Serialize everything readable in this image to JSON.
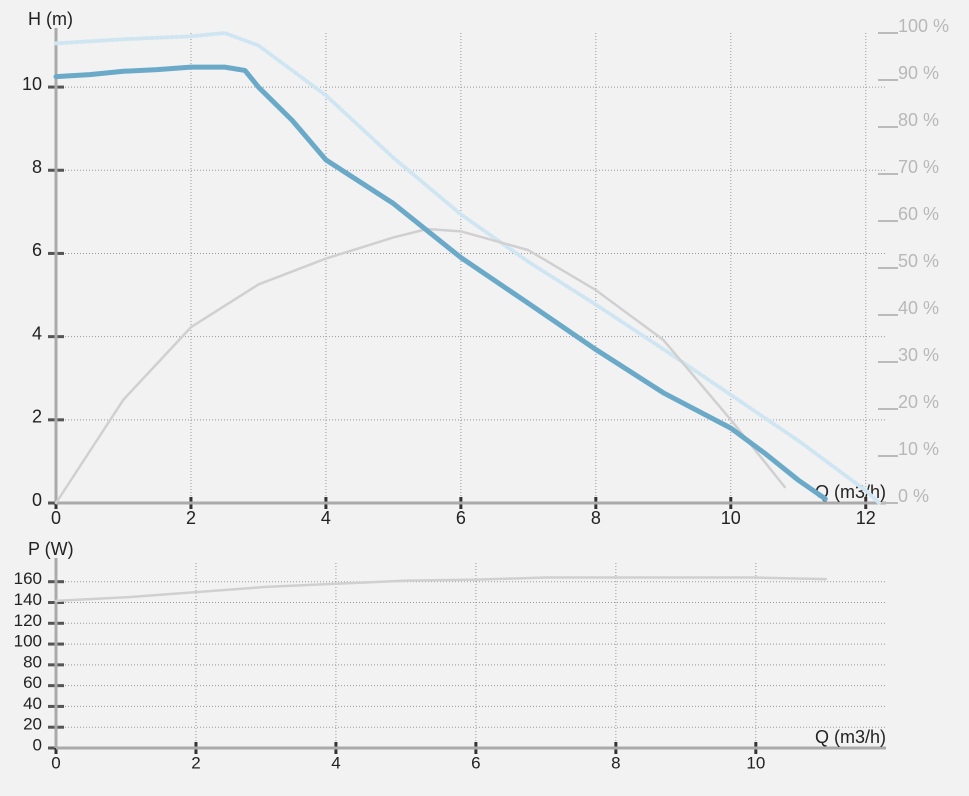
{
  "chart_data": [
    {
      "type": "line",
      "ylabel": "H (m)",
      "xlabel": "Q (m3/h)",
      "xlim": [
        0,
        12.3
      ],
      "ylim": [
        0,
        11.3
      ],
      "y2lim": [
        0,
        100
      ],
      "xticks": [
        0,
        2,
        4,
        6,
        8,
        10,
        12
      ],
      "yticks": [
        0,
        2,
        4,
        6,
        8,
        10
      ],
      "y2ticks": [
        {
          "value": 0,
          "label": "0 %"
        },
        {
          "value": 10,
          "label": "10 %"
        },
        {
          "value": 20,
          "label": "20 %"
        },
        {
          "value": 30,
          "label": "30 %"
        },
        {
          "value": 40,
          "label": "40 %"
        },
        {
          "value": 50,
          "label": "50 %"
        },
        {
          "value": 60,
          "label": "60 %"
        },
        {
          "value": 70,
          "label": "70 %"
        },
        {
          "value": 80,
          "label": "80 %"
        },
        {
          "value": 90,
          "label": "90 %"
        },
        {
          "value": 100,
          "label": "100 %"
        }
      ],
      "grid": true,
      "series": [
        {
          "color": "#cfe6f2",
          "dashed": true,
          "x": [
            0,
            1,
            2,
            2.5,
            3,
            4,
            5,
            6,
            7,
            8,
            9,
            10,
            11,
            12,
            12.2
          ],
          "values": [
            11.05,
            11.15,
            11.22,
            11.3,
            11.0,
            9.8,
            8.3,
            6.94,
            5.8,
            4.77,
            3.7,
            2.6,
            1.5,
            0.3,
            0
          ]
        },
        {
          "color": "#d0d0d0",
          "axis": "y2",
          "x": [
            0,
            1,
            2,
            3,
            4,
            5,
            5.5,
            6,
            7,
            8,
            9,
            10,
            10.8
          ],
          "values": [
            0,
            22,
            37.4,
            46.5,
            52,
            56.5,
            58.3,
            57.8,
            53.8,
            45.3,
            34.7,
            17.7,
            3.4
          ]
        },
        {
          "color": "#6aaac8",
          "width": 5,
          "x": [
            0,
            0.5,
            1,
            1.5,
            2,
            2.5,
            2.8,
            3,
            3.5,
            4,
            5,
            6,
            7,
            8,
            9,
            10,
            10.5,
            11,
            11.4
          ],
          "values": [
            10.25,
            10.3,
            10.38,
            10.42,
            10.48,
            10.48,
            10.4,
            10.0,
            9.2,
            8.25,
            7.2,
            5.9,
            4.8,
            3.69,
            2.65,
            1.8,
            1.2,
            0.55,
            0.1
          ]
        }
      ]
    },
    {
      "type": "line",
      "ylabel": "P (W)",
      "xlabel": "Q (m3/h)",
      "xlim": [
        0,
        11.86
      ],
      "ylim": [
        0,
        178
      ],
      "xticks": [
        0,
        2,
        4,
        6,
        8,
        10
      ],
      "yticks": [
        0,
        20,
        40,
        60,
        80,
        100,
        120,
        140,
        160
      ],
      "grid": true,
      "series": [
        {
          "color": "#d0d0d0",
          "x": [
            0,
            1,
            2,
            3,
            4,
            5,
            6,
            6.5,
            7,
            8,
            9,
            10,
            11
          ],
          "values": [
            141.5,
            145,
            150,
            155,
            158,
            161,
            162,
            163,
            164,
            164,
            164,
            164,
            162.5
          ]
        }
      ]
    }
  ]
}
